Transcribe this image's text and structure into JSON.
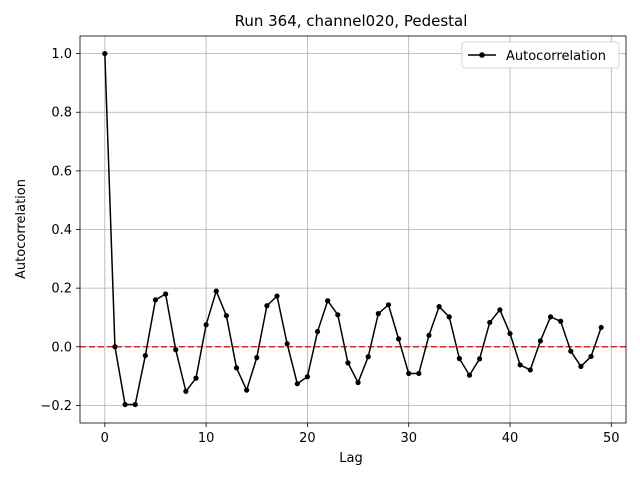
{
  "chart_data": {
    "type": "line",
    "title": "Run 364, channel020, Pedestal",
    "xlabel": "Lag",
    "ylabel": "Autocorrelation",
    "xlim": [
      -2.45,
      51.45
    ],
    "ylim": [
      -0.26,
      1.06
    ],
    "xticks": [
      0,
      10,
      20,
      30,
      40,
      50
    ],
    "yticks": [
      -0.2,
      0.0,
      0.2,
      0.4,
      0.6,
      0.8,
      1.0
    ],
    "xtick_labels": [
      "0",
      "10",
      "20",
      "30",
      "40",
      "50"
    ],
    "ytick_labels": [
      "−0.2",
      "0.0",
      "0.2",
      "0.4",
      "0.6",
      "0.8",
      "1.0"
    ],
    "grid": true,
    "legend_position": "top-right",
    "series": [
      {
        "name": "Autocorrelation",
        "color": "#000000",
        "x": [
          0,
          1,
          2,
          3,
          4,
          5,
          6,
          7,
          8,
          9,
          10,
          11,
          12,
          13,
          14,
          15,
          16,
          17,
          18,
          19,
          20,
          21,
          22,
          23,
          24,
          25,
          26,
          27,
          28,
          29,
          30,
          31,
          32,
          33,
          34,
          35,
          36,
          37,
          38,
          39,
          40,
          41,
          42,
          43,
          44,
          45,
          46,
          47,
          48,
          49
        ],
        "y": [
          1.0,
          0.0,
          -0.197,
          -0.197,
          -0.03,
          0.16,
          0.18,
          -0.01,
          -0.152,
          -0.107,
          0.075,
          0.19,
          0.106,
          -0.072,
          -0.148,
          -0.037,
          0.14,
          0.173,
          0.01,
          -0.126,
          -0.102,
          0.052,
          0.157,
          0.109,
          -0.055,
          -0.122,
          -0.034,
          0.113,
          0.143,
          0.027,
          -0.091,
          -0.091,
          0.039,
          0.137,
          0.102,
          -0.04,
          -0.097,
          -0.041,
          0.083,
          0.126,
          0.045,
          -0.062,
          -0.079,
          0.02,
          0.102,
          0.087,
          -0.015,
          -0.067,
          -0.033,
          0.066
        ]
      }
    ],
    "reference_line": {
      "y": 0.0,
      "color": "#d62728",
      "style": "dashed"
    }
  }
}
